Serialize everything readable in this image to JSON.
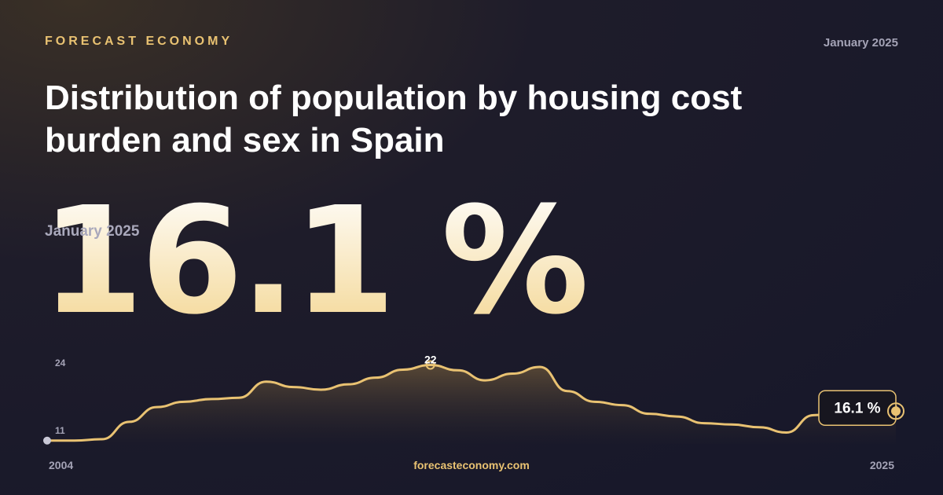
{
  "brand": "FORECAST ECONOMY",
  "date_top": "January 2025",
  "title": "Distribution of population by housing cost burden and sex in Spain",
  "headline": {
    "value": "16.1 %",
    "date": "January 2025"
  },
  "footer": {
    "start_year": "2004",
    "end_year": "2025",
    "site": "forecasteconomy.com"
  },
  "colors": {
    "accent": "#e9c272",
    "background": "#16172a"
  },
  "chart_data": {
    "type": "area",
    "start_year": 2004,
    "end_year": 2025,
    "values": [
      11.0,
      11.0,
      11.2,
      13.8,
      16.0,
      16.8,
      17.2,
      17.4,
      19.8,
      19.0,
      18.6,
      19.4,
      20.4,
      21.6,
      22.3,
      21.5,
      20.0,
      21.0,
      22.0,
      18.4,
      16.8,
      16.3,
      15.0,
      14.6,
      13.6,
      13.4,
      13.0,
      12.2,
      14.8,
      15.2,
      16.0,
      16.1
    ],
    "y_top_label": "24",
    "y_bottom_label": "11",
    "max_label": "22",
    "last_label": "16.1 %",
    "ylim": [
      10.5,
      24
    ]
  }
}
